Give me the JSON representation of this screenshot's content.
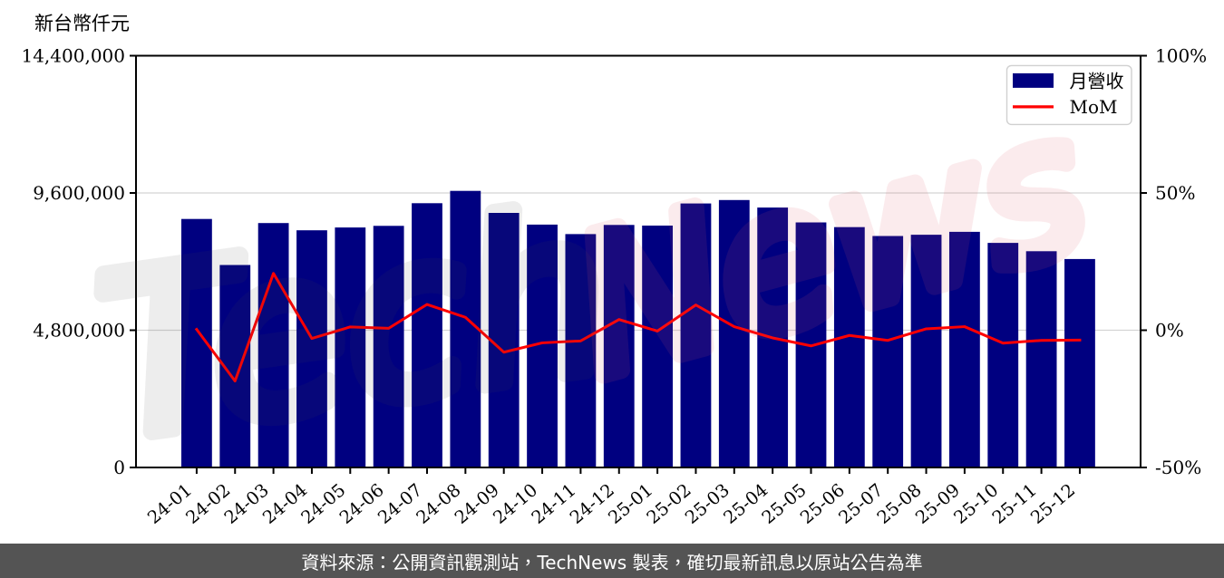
{
  "title": "新台幣仟元",
  "footer": {
    "text": "資料來源：公開資訊觀測站，TechNews 製表，確切最新訊息以原站公告為準",
    "background_color": "#545454",
    "text_color": "#ffffff"
  },
  "watermark": {
    "part1": "Tech",
    "part2": "News",
    "part1_color": "#4a4a4a",
    "part2_color": "#dd5b68",
    "part1_opacity": 0.095,
    "part2_opacity": 0.115
  },
  "chart_data": {
    "type": "bar+line",
    "title": "新台幣仟元",
    "categories": [
      "24-01",
      "24-02",
      "24-03",
      "24-04",
      "24-05",
      "24-06",
      "24-07",
      "24-08",
      "24-09",
      "24-10",
      "24-11",
      "24-12",
      "25-01",
      "25-02",
      "25-03",
      "25-04",
      "25-05",
      "25-06",
      "25-07",
      "25-08",
      "25-09",
      "25-10",
      "25-11",
      "25-12"
    ],
    "series": [
      {
        "name": "月營收",
        "type": "bar",
        "axis": "left",
        "color": "#000080",
        "values": [
          8691000,
          7081000,
          8548000,
          8295000,
          8393000,
          8450000,
          9242000,
          9673000,
          8903000,
          8494000,
          8162000,
          8482000,
          8459000,
          9233000,
          9353000,
          9090000,
          8570000,
          8406000,
          8095000,
          8139000,
          8241000,
          7854000,
          7563000,
          7290000
        ]
      },
      {
        "name": "MoM",
        "type": "line",
        "axis": "right",
        "color": "#ff0000",
        "values": [
          0.3,
          -18.5,
          20.7,
          -3.0,
          1.2,
          0.7,
          9.4,
          4.7,
          -8.0,
          -4.6,
          -3.9,
          3.9,
          -0.3,
          9.2,
          1.3,
          -2.8,
          -5.7,
          -1.9,
          -3.7,
          0.5,
          1.3,
          -4.7,
          -3.7,
          -3.6
        ]
      }
    ],
    "ylabel_left": "新台幣仟元",
    "ylim_left": [
      0,
      14400000
    ],
    "yticks_left": [
      {
        "v": 0,
        "label": "0"
      },
      {
        "v": 4800000,
        "label": "4,800,000"
      },
      {
        "v": 9600000,
        "label": "9,600,000"
      },
      {
        "v": 14400000,
        "label": "14,400,000"
      }
    ],
    "ylim_right": [
      -50,
      100
    ],
    "yticks_right": [
      {
        "v": -50,
        "label": "-50%"
      },
      {
        "v": 0,
        "label": "0%"
      },
      {
        "v": 50,
        "label": "50%"
      },
      {
        "v": 100,
        "label": "100%"
      }
    ],
    "grid": true,
    "grid_color": "#d4d4d4",
    "legend_position": "top-right",
    "legend": [
      {
        "label": "月營收",
        "swatch": "bar",
        "color": "#000080"
      },
      {
        "label": "MoM",
        "swatch": "line",
        "color": "#ff0000"
      }
    ]
  }
}
